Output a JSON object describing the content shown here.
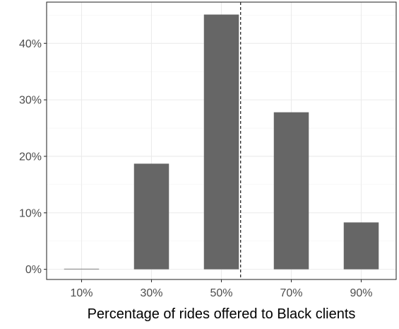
{
  "chart_data": {
    "type": "bar",
    "categories": [
      "10%",
      "30%",
      "50%",
      "70%",
      "90%"
    ],
    "x": [
      10,
      30,
      50,
      70,
      90
    ],
    "values": [
      0.0,
      18.7,
      45.1,
      27.8,
      8.3
    ],
    "value_unit": "percent",
    "y_ticks": [
      0,
      10,
      20,
      30,
      40
    ],
    "y_tick_labels": [
      "0%",
      "10%",
      "20%",
      "30%",
      "40%"
    ],
    "ylim": [
      -1.8,
      47.3
    ],
    "xlim": [
      0,
      100
    ],
    "reference_line": {
      "x": 55.5,
      "style": "dashed"
    },
    "xlabel": "Percentage of rides offered to Black clients",
    "ylabel": "",
    "title": "",
    "grid": true,
    "legend": "none",
    "colors": {
      "bar": "#666666",
      "grid_major": "#ebebeb",
      "grid_minor": "#f3f3f3",
      "panel_border": "#333333",
      "reference_line": "#000000"
    }
  }
}
